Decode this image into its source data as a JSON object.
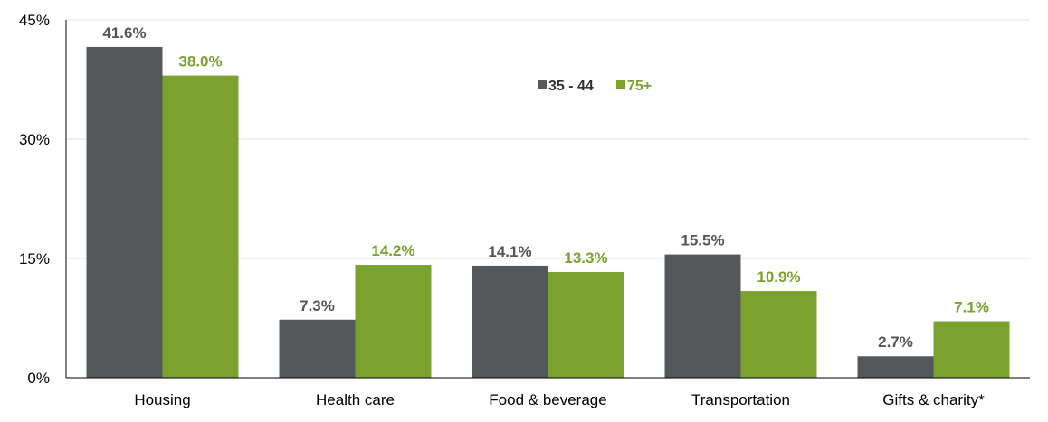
{
  "chart_data": {
    "type": "bar",
    "categories": [
      "Housing",
      "Health care",
      "Food & beverage",
      "Transportation",
      "Gifts & charity*"
    ],
    "series": [
      {
        "name": "35 - 44",
        "color": "#55585b",
        "values": [
          41.6,
          7.3,
          14.1,
          15.5,
          2.7
        ],
        "labels": [
          "41.6%",
          "7.3%",
          "14.1%",
          "15.5%",
          "2.7%"
        ]
      },
      {
        "name": "75+",
        "color": "#7ba12e",
        "values": [
          38.0,
          14.2,
          13.3,
          10.9,
          7.1
        ],
        "labels": [
          "38.0%",
          "14.2%",
          "13.3%",
          "10.9%",
          "7.1%"
        ]
      }
    ],
    "ylim": [
      0,
      45
    ],
    "yticks": [
      0,
      15,
      30,
      45
    ],
    "ytick_labels": [
      "0%",
      "15%",
      "30%",
      "45%"
    ],
    "grid": true,
    "legend_position": "top-center",
    "data_label_color_series1": "#555555"
  }
}
